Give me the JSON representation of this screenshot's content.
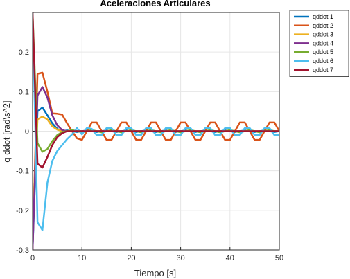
{
  "chart_data": {
    "type": "line",
    "title": "Aceleraciones Articulares",
    "xlabel": "Tiempo [s]",
    "ylabel": "q ddot [rad\\s^2]",
    "xlim": [
      0,
      50
    ],
    "ylim": [
      -0.3,
      0.3
    ],
    "xticks": [
      0,
      10,
      20,
      30,
      40,
      50
    ],
    "xtick_labels": [
      "0",
      "10",
      "20",
      "30",
      "40",
      "50"
    ],
    "yticks": [
      -0.3,
      -0.2,
      -0.1,
      0,
      0.1,
      0.2
    ],
    "ytick_labels": [
      "-0.3",
      "-0.2",
      "-0.1",
      "0",
      "0.1",
      "0.2"
    ],
    "grid": true,
    "legend_position": "outside-top-right",
    "x": [
      0,
      1,
      2,
      3,
      4,
      5,
      6,
      7,
      8,
      9,
      10,
      11,
      12,
      13,
      14,
      15,
      16,
      17,
      18,
      19,
      20,
      21,
      22,
      23,
      24,
      25,
      26,
      27,
      28,
      29,
      30,
      31,
      32,
      33,
      34,
      35,
      36,
      37,
      38,
      39,
      40,
      41,
      42,
      43,
      44,
      45,
      46,
      47,
      48,
      49,
      50
    ],
    "series": [
      {
        "name": "qddot 1",
        "color": "#0072BD",
        "values": [
          -0.3,
          0.05,
          0.06,
          0.04,
          0.02,
          0.006,
          0.0,
          0.002,
          0.0,
          -0.002,
          0.0,
          0.002,
          0.0,
          -0.002,
          0.0,
          0.002,
          0.0,
          -0.002,
          0.0,
          0.002,
          0.0,
          -0.002,
          0.0,
          0.002,
          0.0,
          -0.002,
          0.0,
          0.002,
          0.0,
          -0.002,
          0.0,
          0.002,
          0.0,
          -0.002,
          0.0,
          0.002,
          0.0,
          -0.002,
          0.0,
          0.002,
          0.0,
          -0.002,
          0.0,
          0.002,
          0.0,
          -0.002,
          0.0,
          0.002,
          0.0,
          -0.002,
          0.0
        ]
      },
      {
        "name": "qddot 2",
        "color": "#D95319",
        "values": [
          -0.3,
          0.145,
          0.148,
          0.1,
          0.045,
          0.044,
          0.042,
          0.02,
          0.0,
          -0.018,
          -0.022,
          0.0,
          0.022,
          0.022,
          0.0,
          -0.022,
          -0.022,
          0.0,
          0.022,
          0.022,
          0.0,
          -0.022,
          -0.022,
          0.0,
          0.022,
          0.022,
          0.0,
          -0.022,
          -0.022,
          0.0,
          0.022,
          0.022,
          0.0,
          -0.022,
          -0.022,
          0.0,
          0.022,
          0.022,
          0.0,
          -0.022,
          -0.022,
          0.0,
          0.022,
          0.022,
          0.0,
          -0.022,
          -0.022,
          0.0,
          0.022,
          0.022,
          0.0
        ]
      },
      {
        "name": "qddot 3",
        "color": "#EDB120",
        "values": [
          -0.23,
          0.03,
          0.037,
          0.03,
          0.012,
          0.004,
          0.0,
          0.0,
          0.0,
          0.0,
          0.0,
          0.0,
          0.0,
          0.0,
          0.0,
          0.0,
          0.0,
          0.0,
          0.0,
          0.0,
          0.0,
          0.0,
          0.0,
          0.0,
          0.0,
          0.0,
          0.0,
          0.0,
          0.0,
          0.0,
          0.0,
          0.0,
          0.0,
          0.0,
          0.0,
          0.0,
          0.0,
          0.0,
          0.0,
          0.0,
          0.0,
          0.0,
          0.0,
          0.0,
          0.0,
          0.0,
          0.0,
          0.0,
          0.0,
          0.0,
          0.0
        ]
      },
      {
        "name": "qddot 4",
        "color": "#7E2F8E",
        "values": [
          -0.3,
          0.09,
          0.112,
          0.085,
          0.04,
          0.015,
          0.003,
          0.0,
          0.0,
          0.0,
          0.0,
          0.0,
          0.0,
          0.0,
          0.0,
          0.0,
          0.0,
          0.0,
          0.0,
          0.0,
          0.0,
          0.0,
          0.0,
          0.0,
          0.0,
          0.0,
          0.0,
          0.0,
          0.0,
          0.0,
          0.0,
          0.0,
          0.0,
          0.0,
          0.0,
          0.0,
          0.0,
          0.0,
          0.0,
          0.0,
          0.0,
          0.0,
          0.0,
          0.0,
          0.0,
          0.0,
          0.0,
          0.0,
          0.0,
          0.0,
          0.0
        ]
      },
      {
        "name": "qddot 5",
        "color": "#77AC30",
        "values": [
          0.3,
          -0.03,
          -0.052,
          -0.045,
          -0.025,
          -0.01,
          -0.002,
          0.0,
          0.003,
          0.0,
          -0.003,
          0.0,
          0.003,
          0.0,
          -0.003,
          0.0,
          0.003,
          0.0,
          -0.003,
          0.0,
          0.003,
          0.0,
          -0.003,
          0.0,
          0.003,
          0.0,
          -0.003,
          0.0,
          0.003,
          0.0,
          -0.003,
          0.0,
          0.003,
          0.0,
          -0.003,
          0.0,
          0.003,
          0.0,
          -0.003,
          0.0,
          0.003,
          0.0,
          -0.003,
          0.0,
          0.003,
          0.0,
          -0.003,
          0.0,
          0.003,
          0.0,
          0.0
        ]
      },
      {
        "name": "qddot 6",
        "color": "#4DBEEE",
        "values": [
          0.3,
          -0.23,
          -0.25,
          -0.13,
          -0.075,
          -0.05,
          -0.035,
          -0.02,
          -0.008,
          0.008,
          -0.008,
          0.008,
          0.006,
          -0.01,
          -0.01,
          0.008,
          0.008,
          -0.01,
          -0.01,
          0.008,
          0.008,
          -0.01,
          -0.01,
          0.008,
          0.008,
          -0.01,
          -0.01,
          0.008,
          0.008,
          -0.01,
          -0.01,
          0.008,
          0.008,
          -0.01,
          -0.01,
          0.008,
          0.008,
          -0.01,
          -0.01,
          0.008,
          0.008,
          -0.01,
          -0.01,
          0.008,
          0.008,
          -0.01,
          -0.01,
          0.008,
          0.008,
          -0.01,
          -0.01
        ]
      },
      {
        "name": "qddot 7",
        "color": "#A2142F",
        "values": [
          0.3,
          -0.082,
          -0.092,
          -0.065,
          -0.035,
          -0.015,
          -0.005,
          0.0,
          0.0,
          0.0,
          0.0,
          0.0,
          0.0,
          0.0,
          0.0,
          0.0,
          0.0,
          0.0,
          0.0,
          0.0,
          0.0,
          0.0,
          0.0,
          0.0,
          0.0,
          0.0,
          0.0,
          0.0,
          0.0,
          0.0,
          0.0,
          0.0,
          0.0,
          0.0,
          0.0,
          0.0,
          0.0,
          0.0,
          0.0,
          0.0,
          0.0,
          0.0,
          0.0,
          0.0,
          0.0,
          0.0,
          0.0,
          0.0,
          0.0,
          0.0,
          0.0
        ]
      }
    ]
  }
}
